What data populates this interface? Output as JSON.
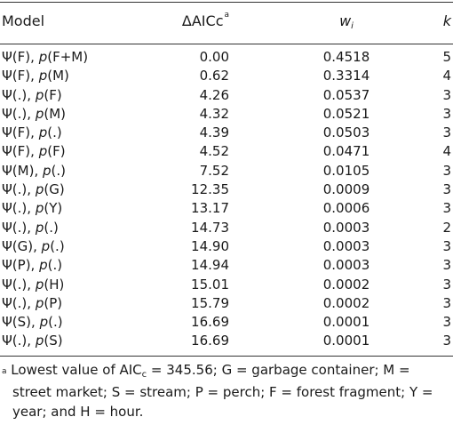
{
  "table": {
    "headers": {
      "model": "Model",
      "aicc": "ΔAICc",
      "aicc_note": "a",
      "w_base": "w",
      "w_sub": "i",
      "k": "k"
    },
    "rows": [
      {
        "psi": "Ψ(F), ",
        "p": "p",
        "p_arg": "(F+M)",
        "aicc": "0.00",
        "w": "0.4518",
        "k": "5"
      },
      {
        "psi": "Ψ(F), ",
        "p": "p",
        "p_arg": "(M)",
        "aicc": "0.62",
        "w": "0.3314",
        "k": "4"
      },
      {
        "psi": "Ψ(.), ",
        "p": "p",
        "p_arg": "(F)",
        "aicc": "4.26",
        "w": "0.0537",
        "k": "3"
      },
      {
        "psi": "Ψ(.), ",
        "p": "p",
        "p_arg": "(M)",
        "aicc": "4.32",
        "w": "0.0521",
        "k": "3"
      },
      {
        "psi": "Ψ(F), ",
        "p": "p",
        "p_arg": "(.)",
        "aicc": "4.39",
        "w": "0.0503",
        "k": "3"
      },
      {
        "psi": "Ψ(F), ",
        "p": "p",
        "p_arg": "(F)",
        "aicc": "4.52",
        "w": "0.0471",
        "k": "4"
      },
      {
        "psi": "Ψ(M), ",
        "p": "p",
        "p_arg": "(.)",
        "aicc": "7.52",
        "w": "0.0105",
        "k": "3"
      },
      {
        "psi": "Ψ(.), ",
        "p": "p",
        "p_arg": "(G)",
        "aicc": "12.35",
        "w": "0.0009",
        "k": "3"
      },
      {
        "psi": "Ψ(.), ",
        "p": "p",
        "p_arg": "(Y)",
        "aicc": "13.17",
        "w": "0.0006",
        "k": "3"
      },
      {
        "psi": "Ψ(.), ",
        "p": "p",
        "p_arg": "(.)",
        "aicc": "14.73",
        "w": "0.0003",
        "k": "2"
      },
      {
        "psi": "Ψ(G), ",
        "p": "p",
        "p_arg": "(.)",
        "aicc": "14.90",
        "w": "0.0003",
        "k": "3"
      },
      {
        "psi": "Ψ(P), ",
        "p": "p",
        "p_arg": "(.)",
        "aicc": "14.94",
        "w": "0.0003",
        "k": "3"
      },
      {
        "psi": "Ψ(.), ",
        "p": "p",
        "p_arg": "(H)",
        "aicc": "15.01",
        "w": "0.0002",
        "k": "3"
      },
      {
        "psi": "Ψ(.), ",
        "p": "p",
        "p_arg": "(P)",
        "aicc": "15.79",
        "w": "0.0002",
        "k": "3"
      },
      {
        "psi": "Ψ(S), ",
        "p": "p",
        "p_arg": "(.)",
        "aicc": "16.69",
        "w": "0.0001",
        "k": "3"
      },
      {
        "psi": "Ψ(.), ",
        "p": "p",
        "p_arg": "(S)",
        "aicc": "16.69",
        "w": "0.0001",
        "k": "3"
      }
    ]
  },
  "footnote": {
    "marker": "a",
    "text_before_sub": "Lowest value of AIC",
    "sub": "c",
    "line1_rest": " = 345.56; G = garbage container; M =",
    "line2": "street market; S = stream; P = perch; F = forest fragment; Y =",
    "line3": "year; and H = hour."
  }
}
